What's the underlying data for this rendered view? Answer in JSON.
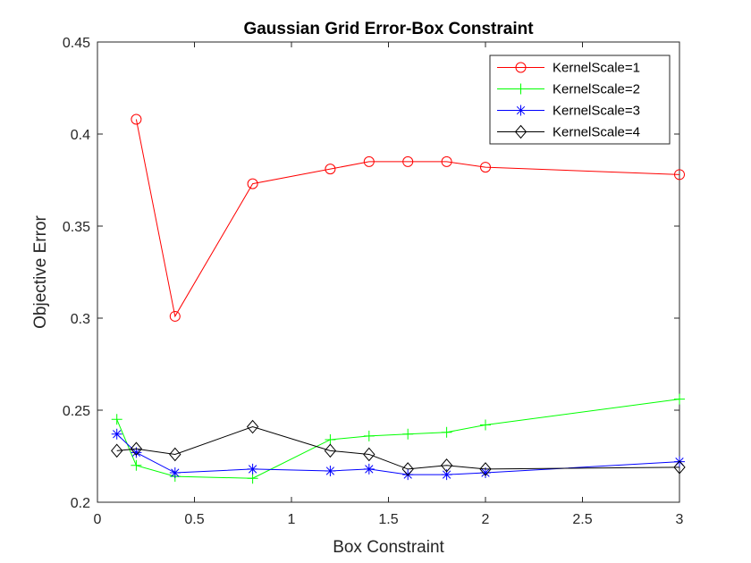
{
  "chart_data": {
    "type": "line",
    "title": "Gaussian Grid Error-Box Constraint",
    "xlabel": "Box Constraint",
    "ylabel": "Objective Error",
    "xlim": [
      0,
      3
    ],
    "ylim": [
      0.2,
      0.45
    ],
    "xticks": [
      0,
      0.5,
      1,
      1.5,
      2,
      2.5,
      3
    ],
    "xtick_labels": [
      "0",
      "0.5",
      "1",
      "1.5",
      "2",
      "2.5",
      "3"
    ],
    "yticks": [
      0.2,
      0.25,
      0.3,
      0.35,
      0.4,
      0.45
    ],
    "ytick_labels": [
      "0.2",
      "0.25",
      "0.3",
      "0.35",
      "0.4",
      "0.45"
    ],
    "grid": false,
    "legend_position": "top-right",
    "series": [
      {
        "name": "KernelScale=1",
        "color": "#ff0000",
        "marker": "circle",
        "x": [
          0.2,
          0.4,
          0.8,
          1.2,
          1.4,
          1.6,
          1.8,
          2.0,
          3.0
        ],
        "y": [
          0.408,
          0.301,
          0.373,
          0.381,
          0.385,
          0.385,
          0.385,
          0.382,
          0.378
        ]
      },
      {
        "name": "KernelScale=2",
        "color": "#00ff00",
        "marker": "plus",
        "x": [
          0.1,
          0.2,
          0.4,
          0.8,
          1.2,
          1.4,
          1.6,
          1.8,
          2.0,
          3.0
        ],
        "y": [
          0.245,
          0.22,
          0.214,
          0.213,
          0.234,
          0.236,
          0.237,
          0.238,
          0.242,
          0.256
        ]
      },
      {
        "name": "KernelScale=3",
        "color": "#0000ff",
        "marker": "asterisk",
        "x": [
          0.1,
          0.2,
          0.4,
          0.8,
          1.2,
          1.4,
          1.6,
          1.8,
          2.0,
          3.0
        ],
        "y": [
          0.237,
          0.227,
          0.216,
          0.218,
          0.217,
          0.218,
          0.215,
          0.215,
          0.216,
          0.222
        ]
      },
      {
        "name": "KernelScale=4",
        "color": "#000000",
        "marker": "diamond",
        "x": [
          0.1,
          0.2,
          0.4,
          0.8,
          1.2,
          1.4,
          1.6,
          1.8,
          2.0,
          3.0
        ],
        "y": [
          0.228,
          0.229,
          0.226,
          0.241,
          0.228,
          0.226,
          0.218,
          0.22,
          0.218,
          0.219
        ]
      }
    ]
  }
}
